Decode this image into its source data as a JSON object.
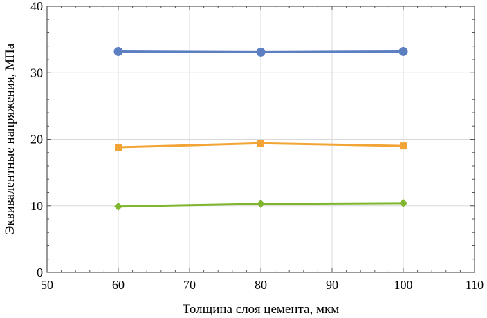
{
  "chart_data": {
    "type": "line",
    "title": "",
    "xlabel": "Толщина слоя цемента, мкм",
    "ylabel": "Эквивалентные напряжения, МПа",
    "xlim": [
      50,
      110
    ],
    "ylim": [
      0,
      40
    ],
    "xticks": [
      50,
      60,
      70,
      80,
      90,
      100,
      110
    ],
    "yticks": [
      0,
      10,
      20,
      30,
      40
    ],
    "grid": true,
    "legend": "none",
    "x": [
      60,
      80,
      100
    ],
    "series": [
      {
        "name": "series-1",
        "marker": "circle",
        "color": "#5b7fc0",
        "values": [
          33.2,
          33.1,
          33.2
        ]
      },
      {
        "name": "series-2",
        "marker": "square",
        "color": "#f2a536",
        "values": [
          18.8,
          19.4,
          19.0
        ]
      },
      {
        "name": "series-3",
        "marker": "diamond",
        "color": "#7fb62e",
        "values": [
          9.9,
          10.3,
          10.4
        ]
      }
    ]
  }
}
